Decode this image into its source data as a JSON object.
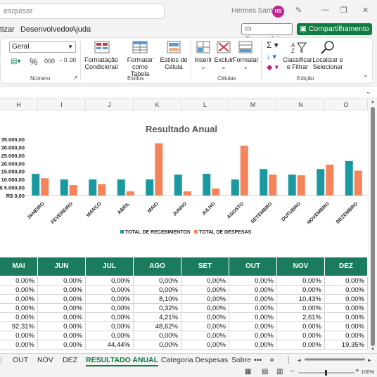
{
  "titlebar": {
    "search_placeholder": "esquisar",
    "user_name": "Hermes Santos",
    "avatar_initials": "HS"
  },
  "menu": {
    "items": [
      "tizar",
      "Desenvolvedor",
      "Ajuda"
    ],
    "comments_label": "Comentários",
    "share_label": "Compartilhamento"
  },
  "ribbon": {
    "number_format": "Geral",
    "percent_symbol": "%",
    "groups": [
      "Número",
      "Estilos",
      "Células",
      "Edição"
    ],
    "conditional_format": [
      "Formatação",
      "Condicional"
    ],
    "format_as_table": [
      "Formatar como",
      "Tabela"
    ],
    "cell_styles": [
      "Estilos de",
      "Célula"
    ],
    "insert": "Inserir",
    "delete": "Excluir",
    "format": "Formatar",
    "sort_filter": [
      "Classificar",
      "e Filtrar"
    ],
    "find_select": [
      "Localizar e",
      "Selecionar"
    ]
  },
  "columns": [
    "H",
    "I",
    "J",
    "K",
    "L",
    "M",
    "N",
    "O"
  ],
  "chart_data": {
    "type": "bar",
    "title": "Resultado Anual",
    "categories": [
      "JANEIRO",
      "FEVEREIRO",
      "MARÇO",
      "ABRIL",
      "MAIO",
      "JUNHO",
      "JULHO",
      "AGOSTO",
      "SETEMBRO",
      "OUTUBRO",
      "NOVEMBRO",
      "DEZEMBRO"
    ],
    "series": [
      {
        "name": "TOTAL DE RECEBIMENTOS",
        "color": "#1a9aa0",
        "values": [
          13500,
          10000,
          10000,
          10000,
          10000,
          13000,
          13500,
          10000,
          16500,
          13000,
          16500,
          21500
        ]
      },
      {
        "name": "TOTAL DE DESPESAS",
        "color": "#f5845a",
        "values": [
          10800,
          6500,
          7000,
          2600,
          32500,
          2600,
          4400,
          31000,
          13000,
          12600,
          19200,
          15500
        ]
      }
    ],
    "yticks": [
      "R$ 0,00",
      "$ 5.000,00",
      "10.000,00",
      "15.000,00",
      "20.000,00",
      "25.000,00",
      "30.000,00",
      "35.000,00"
    ],
    "ylim": [
      0,
      35000
    ],
    "legend_position": "bottom"
  },
  "table": {
    "headers": [
      "MAI",
      "JUN",
      "JUL",
      "AGO",
      "SET",
      "OUT",
      "NOV",
      "DEZ"
    ],
    "rows": [
      [
        "0,00%",
        "0,00%",
        "0,00%",
        "0,00%",
        "0,00%",
        "0,00%",
        "0,00%",
        "0,00%"
      ],
      [
        "0,00%",
        "0,00%",
        "0,00%",
        "0,00%",
        "0,00%",
        "0,00%",
        "0,00%",
        "0,00%"
      ],
      [
        "0,00%",
        "0,00%",
        "0,00%",
        "8,10%",
        "0,00%",
        "0,00%",
        "10,43%",
        "0,00%"
      ],
      [
        "0,00%",
        "0,00%",
        "0,00%",
        "0,32%",
        "0,00%",
        "0,00%",
        "0,00%",
        "0,00%"
      ],
      [
        "0,00%",
        "0,00%",
        "0,00%",
        "4,21%",
        "0,00%",
        "0,00%",
        "2,61%",
        "0,00%"
      ],
      [
        "92,31%",
        "0,00%",
        "0,00%",
        "48,62%",
        "0,00%",
        "0,00%",
        "0,00%",
        "0,00%"
      ],
      [
        "0,00%",
        "0,00%",
        "0,00%",
        "0,00%",
        "0,00%",
        "0,00%",
        "0,00%",
        "0,00%"
      ],
      [
        "0,00%",
        "0,00%",
        "44,44%",
        "0,00%",
        "0,00%",
        "0,00%",
        "0,00%",
        "19,35%"
      ]
    ]
  },
  "sheet_tabs": [
    "OUT",
    "NOV",
    "DEZ",
    "RESULTADO ANUAL",
    "Categoria Despesas",
    "Sobre"
  ],
  "active_tab": "RESULTADO ANUAL",
  "zoom": "100%"
}
